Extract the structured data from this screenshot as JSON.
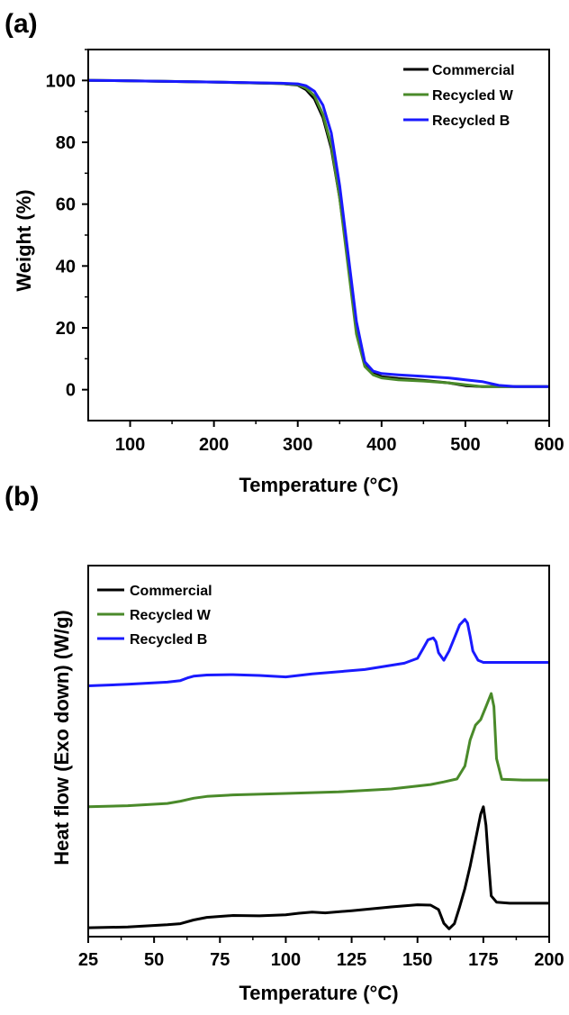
{
  "chart_data": [
    {
      "type": "line",
      "panel_label": "(a)",
      "xlabel": "Temperature (°C)",
      "ylabel": "Weight (%)",
      "xlim": [
        50,
        600
      ],
      "ylim": [
        -10,
        110
      ],
      "xticks": [
        100,
        200,
        300,
        400,
        500,
        600
      ],
      "yticks": [
        0,
        20,
        40,
        60,
        80,
        100
      ],
      "show_yticklabels": true,
      "grid": false,
      "legend_position": "top-right",
      "series": [
        {
          "name": "Commercial",
          "color": "#000000",
          "x": [
            50,
            100,
            200,
            280,
            300,
            310,
            320,
            330,
            340,
            350,
            360,
            370,
            380,
            390,
            400,
            420,
            450,
            480,
            500,
            520,
            550,
            600
          ],
          "y": [
            100,
            99.9,
            99.5,
            99.0,
            98.5,
            97.0,
            94.0,
            88.0,
            78.0,
            62.0,
            42.0,
            20.0,
            8.0,
            5.2,
            4.2,
            3.6,
            3.0,
            2.2,
            1.3,
            1.0,
            1.0,
            1.0
          ]
        },
        {
          "name": "Recycled W",
          "color": "#4a8a2a",
          "x": [
            50,
            100,
            200,
            280,
            300,
            310,
            320,
            330,
            340,
            350,
            360,
            370,
            380,
            390,
            400,
            420,
            450,
            480,
            500,
            520,
            550,
            600
          ],
          "y": [
            100,
            99.9,
            99.5,
            99.0,
            98.6,
            97.5,
            95.0,
            89.0,
            79.0,
            62.0,
            40.0,
            18.0,
            7.5,
            4.8,
            3.8,
            3.2,
            2.8,
            2.2,
            1.6,
            1.0,
            1.0,
            1.0
          ]
        },
        {
          "name": "Recycled B",
          "color": "#1a1aff",
          "x": [
            50,
            100,
            200,
            280,
            300,
            310,
            320,
            330,
            340,
            350,
            360,
            370,
            380,
            390,
            400,
            420,
            450,
            480,
            500,
            520,
            540,
            560,
            600
          ],
          "y": [
            100,
            99.9,
            99.5,
            99.1,
            98.9,
            98.3,
            96.5,
            92.0,
            83.0,
            66.0,
            44.0,
            22.0,
            9.0,
            6.0,
            5.2,
            4.8,
            4.3,
            3.8,
            3.2,
            2.6,
            1.4,
            1.0,
            1.0
          ]
        }
      ]
    },
    {
      "type": "line",
      "panel_label": "(b)",
      "xlabel": "Temperature (°C)",
      "ylabel": "Heat flow (Exo down) (W/g)",
      "xlim": [
        25,
        200
      ],
      "ylim": [
        0,
        100
      ],
      "xticks": [
        25,
        50,
        75,
        100,
        125,
        150,
        175,
        200
      ],
      "yticks": [],
      "show_yticklabels": false,
      "grid": false,
      "legend_position": "top-left",
      "series": [
        {
          "name": "Commercial",
          "color": "#000000",
          "x": [
            25,
            40,
            55,
            60,
            65,
            70,
            80,
            90,
            100,
            105,
            110,
            115,
            125,
            140,
            150,
            155,
            158,
            160,
            162,
            164,
            166,
            168,
            170,
            172,
            174,
            175,
            176,
            177,
            178,
            180,
            185,
            200
          ],
          "y": [
            2.4,
            2.6,
            3.2,
            3.5,
            4.5,
            5.2,
            5.7,
            5.6,
            5.9,
            6.3,
            6.6,
            6.4,
            7.0,
            8.0,
            8.6,
            8.5,
            7.3,
            3.6,
            2.1,
            3.5,
            8.0,
            13.0,
            19.0,
            26.0,
            33.0,
            35.0,
            30.0,
            20.0,
            11.0,
            9.3,
            9.0,
            9.0
          ]
        },
        {
          "name": "Recycled W",
          "color": "#4a8a2a",
          "x": [
            25,
            40,
            55,
            60,
            65,
            70,
            80,
            100,
            120,
            140,
            155,
            160,
            165,
            168,
            170,
            172,
            174,
            176,
            178,
            179,
            180,
            182,
            190,
            200
          ],
          "y": [
            35.0,
            35.3,
            35.9,
            36.5,
            37.3,
            37.8,
            38.2,
            38.6,
            39.0,
            39.8,
            41.0,
            41.7,
            42.5,
            46.0,
            53.0,
            57.0,
            58.5,
            62.0,
            65.5,
            62.0,
            48.0,
            42.4,
            42.2,
            42.2
          ]
        },
        {
          "name": "Recycled B",
          "color": "#1a1aff",
          "x": [
            25,
            40,
            55,
            60,
            63,
            65,
            70,
            80,
            90,
            100,
            110,
            130,
            145,
            150,
            152,
            154,
            156,
            157,
            158,
            160,
            162,
            164,
            166,
            168,
            169,
            170,
            171,
            173,
            175,
            180,
            200
          ],
          "y": [
            67.6,
            68.0,
            68.6,
            69.0,
            69.8,
            70.2,
            70.5,
            70.6,
            70.4,
            70.0,
            70.8,
            72.0,
            73.7,
            75.0,
            77.5,
            80.0,
            80.5,
            79.5,
            76.5,
            74.5,
            77.0,
            80.5,
            84.0,
            85.5,
            84.5,
            81.0,
            77.0,
            74.5,
            73.9,
            73.9,
            73.9
          ]
        }
      ]
    }
  ]
}
